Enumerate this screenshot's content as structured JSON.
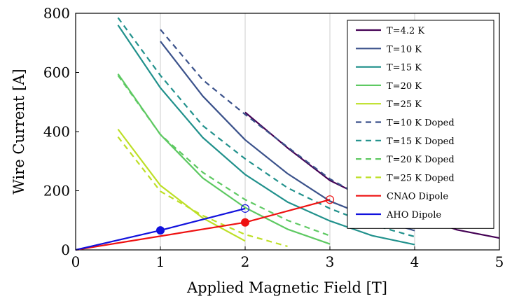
{
  "chart_data": {
    "type": "line",
    "xlabel": "Applied Magnetic Field [T]",
    "ylabel": "Wire Current [A]",
    "xlim": [
      0,
      5
    ],
    "ylim": [
      0,
      800
    ],
    "x_ticks": [
      "0",
      "1",
      "2",
      "3",
      "4",
      "5"
    ],
    "y_ticks": [
      "0",
      "200",
      "400",
      "600",
      "800"
    ],
    "x_tick_values": [
      0,
      1,
      2,
      3,
      4,
      5
    ],
    "y_tick_values": [
      0,
      200,
      400,
      600,
      800
    ],
    "grid": "vertical",
    "legend_position": "top-right",
    "series": [
      {
        "name": "T=4.2 K",
        "color": "#440154",
        "style": "solid",
        "x": [
          2,
          2.5,
          3,
          3.5,
          4,
          4.5,
          5
        ],
        "y": [
          465,
          345,
          235,
          165,
          118,
          68,
          40
        ]
      },
      {
        "name": "T=10 K",
        "color": "#3b528b",
        "style": "solid",
        "x": [
          1,
          1.5,
          2,
          2.5,
          3,
          3.5,
          4
        ],
        "y": [
          705,
          520,
          372,
          258,
          165,
          108,
          65
        ]
      },
      {
        "name": "T=15 K",
        "color": "#21918c",
        "style": "solid",
        "x": [
          0.5,
          1,
          1.5,
          2,
          2.5,
          3,
          3.5,
          4
        ],
        "y": [
          760,
          548,
          380,
          255,
          162,
          98,
          48,
          18
        ]
      },
      {
        "name": "T=20 K",
        "color": "#5ec962",
        "style": "solid",
        "x": [
          0.5,
          1,
          1.5,
          2,
          2.5,
          3
        ],
        "y": [
          595,
          390,
          243,
          143,
          70,
          20
        ]
      },
      {
        "name": "T=25 K",
        "color": "#bddf26",
        "style": "solid",
        "x": [
          0.5,
          1,
          1.5,
          2
        ],
        "y": [
          408,
          218,
          108,
          30
        ]
      },
      {
        "name": "T=10 K Doped",
        "color": "#3b528b",
        "style": "dashed",
        "x": [
          1,
          1.5,
          2,
          2.5,
          3,
          3.5,
          4
        ],
        "y": [
          745,
          575,
          458,
          348,
          240,
          160,
          98
        ]
      },
      {
        "name": "T=15 K Doped",
        "color": "#21918c",
        "style": "dashed",
        "x": [
          0.5,
          1,
          1.5,
          2,
          2.5,
          3,
          3.5,
          4
        ],
        "y": [
          785,
          590,
          420,
          308,
          210,
          140,
          85,
          45
        ]
      },
      {
        "name": "T=20 K Doped",
        "color": "#5ec962",
        "style": "dashed",
        "x": [
          0.5,
          1,
          1.5,
          2,
          2.5,
          3
        ],
        "y": [
          590,
          390,
          262,
          170,
          100,
          48
        ]
      },
      {
        "name": "T=25 K Doped",
        "color": "#bddf26",
        "style": "dashed",
        "x": [
          0.5,
          1,
          1.5,
          2,
          2.5
        ],
        "y": [
          382,
          198,
          116,
          52,
          12
        ]
      },
      {
        "name": "CNAO Dipole",
        "color": "#ee1111",
        "style": "solid",
        "x": [
          0,
          2,
          3
        ],
        "y": [
          0,
          93,
          170
        ],
        "markers": [
          {
            "x": 2,
            "y": 93,
            "filled": true
          },
          {
            "x": 3,
            "y": 170,
            "filled": false
          }
        ]
      },
      {
        "name": "AHO Dipole",
        "color": "#1111dd",
        "style": "solid",
        "x": [
          0,
          1,
          2
        ],
        "y": [
          0,
          66,
          140
        ],
        "markers": [
          {
            "x": 1,
            "y": 66,
            "filled": true
          },
          {
            "x": 2,
            "y": 140,
            "filled": false
          }
        ]
      }
    ]
  }
}
